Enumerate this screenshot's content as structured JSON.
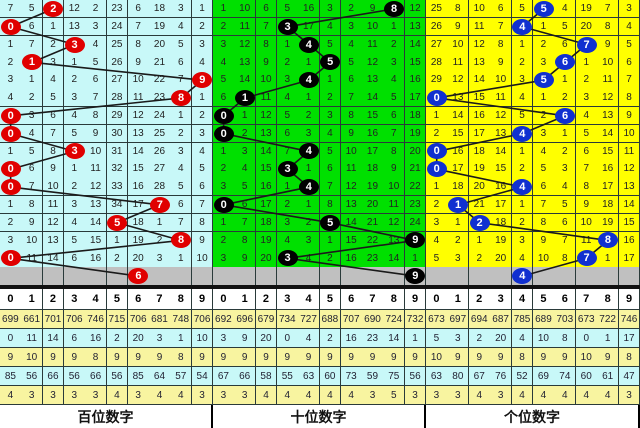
{
  "chart_data": {
    "type": "table",
    "digit_headers": [
      "0",
      "1",
      "2",
      "3",
      "4",
      "5",
      "6",
      "7",
      "8",
      "9"
    ],
    "panels": [
      {
        "title": "百位数字",
        "bg_color": "#c8f8f8",
        "ball_color": "#e00000",
        "draws": [
          2,
          0,
          3,
          1,
          9,
          8,
          0,
          0,
          3,
          0,
          0,
          7,
          5,
          8,
          0,
          6
        ],
        "rows": [
          [
            7,
            5,
            2,
            12,
            2,
            23,
            6,
            18,
            3,
            1
          ],
          [
            0,
            6,
            1,
            13,
            3,
            24,
            7,
            19,
            4,
            2
          ],
          [
            1,
            7,
            2,
            3,
            4,
            25,
            8,
            20,
            5,
            3
          ],
          [
            2,
            1,
            3,
            1,
            5,
            26,
            9,
            21,
            6,
            4
          ],
          [
            3,
            1,
            4,
            2,
            6,
            27,
            10,
            22,
            7,
            9
          ],
          [
            4,
            2,
            5,
            3,
            7,
            28,
            11,
            23,
            8,
            1
          ],
          [
            0,
            3,
            6,
            4,
            8,
            29,
            12,
            24,
            1,
            2
          ],
          [
            0,
            4,
            7,
            5,
            9,
            30,
            13,
            25,
            2,
            3
          ],
          [
            1,
            5,
            8,
            3,
            10,
            31,
            14,
            26,
            3,
            4
          ],
          [
            0,
            6,
            9,
            1,
            11,
            32,
            15,
            27,
            4,
            5
          ],
          [
            0,
            7,
            10,
            2,
            12,
            33,
            16,
            28,
            5,
            6
          ],
          [
            1,
            8,
            11,
            3,
            13,
            34,
            17,
            7,
            6,
            7
          ],
          [
            2,
            9,
            12,
            4,
            14,
            5,
            18,
            1,
            7,
            8
          ],
          [
            3,
            10,
            13,
            5,
            15,
            1,
            19,
            2,
            8,
            9
          ],
          [
            0,
            11,
            14,
            6,
            16,
            2,
            20,
            3,
            1,
            10
          ]
        ],
        "stats": [
          [
            699,
            661,
            701,
            706,
            746,
            715,
            706,
            681,
            748,
            706
          ],
          [
            0,
            11,
            14,
            6,
            16,
            2,
            20,
            3,
            1,
            10
          ],
          [
            9,
            10,
            9,
            9,
            8,
            9,
            9,
            9,
            8,
            9
          ],
          [
            85,
            56,
            66,
            56,
            66,
            56,
            85,
            64,
            57,
            54
          ],
          [
            4,
            3,
            3,
            3,
            3,
            4,
            3,
            4,
            4,
            3
          ]
        ]
      },
      {
        "title": "十位数字",
        "bg_color": "#00e000",
        "ball_color": "#000000",
        "draws": [
          8,
          3,
          4,
          5,
          4,
          1,
          0,
          0,
          4,
          3,
          4,
          0,
          5,
          9,
          3,
          9
        ],
        "rows": [
          [
            1,
            10,
            6,
            5,
            16,
            3,
            2,
            9,
            8,
            12
          ],
          [
            2,
            11,
            7,
            3,
            17,
            4,
            3,
            10,
            1,
            13
          ],
          [
            3,
            12,
            8,
            1,
            4,
            5,
            4,
            11,
            2,
            14
          ],
          [
            4,
            13,
            9,
            2,
            1,
            5,
            5,
            12,
            3,
            15
          ],
          [
            5,
            14,
            10,
            3,
            4,
            1,
            6,
            13,
            4,
            16
          ],
          [
            6,
            1,
            11,
            4,
            1,
            2,
            7,
            14,
            5,
            17
          ],
          [
            0,
            1,
            12,
            5,
            2,
            3,
            8,
            15,
            6,
            18
          ],
          [
            0,
            2,
            13,
            6,
            3,
            4,
            9,
            16,
            7,
            19
          ],
          [
            1,
            3,
            14,
            7,
            4,
            5,
            10,
            17,
            8,
            20
          ],
          [
            2,
            4,
            15,
            3,
            1,
            6,
            11,
            18,
            9,
            21
          ],
          [
            3,
            5,
            16,
            1,
            4,
            7,
            12,
            19,
            10,
            22
          ],
          [
            0,
            6,
            17,
            2,
            1,
            8,
            13,
            20,
            11,
            23
          ],
          [
            1,
            7,
            18,
            3,
            2,
            5,
            14,
            21,
            12,
            24
          ],
          [
            2,
            8,
            19,
            4,
            3,
            1,
            15,
            22,
            13,
            9
          ],
          [
            3,
            9,
            20,
            3,
            4,
            2,
            16,
            23,
            14,
            1
          ]
        ],
        "stats": [
          [
            692,
            696,
            679,
            734,
            727,
            688,
            707,
            690,
            724,
            732
          ],
          [
            3,
            9,
            20,
            0,
            4,
            2,
            16,
            23,
            14,
            1
          ],
          [
            9,
            9,
            9,
            9,
            9,
            9,
            9,
            9,
            9,
            9
          ],
          [
            67,
            66,
            58,
            55,
            63,
            60,
            73,
            59,
            75,
            56
          ],
          [
            3,
            3,
            4,
            4,
            4,
            4,
            4,
            3,
            5,
            3
          ]
        ]
      },
      {
        "title": "个位数字",
        "bg_color": "#ffff00",
        "ball_color": "#1030d0",
        "draws": [
          5,
          4,
          7,
          6,
          5,
          0,
          6,
          4,
          0,
          0,
          4,
          1,
          2,
          8,
          7,
          4
        ],
        "rows": [
          [
            25,
            8,
            10,
            6,
            5,
            5,
            4,
            19,
            7,
            3
          ],
          [
            26,
            9,
            11,
            7,
            4,
            1,
            5,
            20,
            8,
            4
          ],
          [
            27,
            10,
            12,
            8,
            1,
            2,
            6,
            7,
            9,
            5
          ],
          [
            28,
            11,
            13,
            9,
            2,
            3,
            6,
            1,
            10,
            6
          ],
          [
            29,
            12,
            14,
            10,
            3,
            5,
            1,
            2,
            11,
            7
          ],
          [
            0,
            13,
            15,
            11,
            4,
            1,
            2,
            3,
            12,
            8
          ],
          [
            1,
            14,
            16,
            12,
            5,
            2,
            6,
            4,
            13,
            9
          ],
          [
            2,
            15,
            17,
            13,
            4,
            3,
            1,
            5,
            14,
            10
          ],
          [
            0,
            16,
            18,
            14,
            1,
            4,
            2,
            6,
            15,
            11
          ],
          [
            0,
            17,
            19,
            15,
            2,
            5,
            3,
            7,
            16,
            12
          ],
          [
            1,
            18,
            20,
            16,
            4,
            6,
            4,
            8,
            17,
            13
          ],
          [
            2,
            1,
            21,
            17,
            1,
            7,
            5,
            9,
            18,
            14
          ],
          [
            3,
            1,
            2,
            18,
            2,
            8,
            6,
            10,
            19,
            15
          ],
          [
            4,
            2,
            1,
            19,
            3,
            9,
            7,
            11,
            8,
            16
          ],
          [
            5,
            3,
            2,
            20,
            4,
            10,
            8,
            7,
            1,
            17
          ]
        ],
        "stats": [
          [
            673,
            697,
            694,
            687,
            785,
            689,
            703,
            673,
            722,
            746
          ],
          [
            5,
            3,
            2,
            20,
            4,
            10,
            8,
            0,
            1,
            17
          ],
          [
            10,
            9,
            9,
            9,
            8,
            9,
            9,
            10,
            9,
            8
          ],
          [
            63,
            80,
            67,
            76,
            52,
            69,
            74,
            60,
            61,
            47
          ],
          [
            3,
            3,
            4,
            3,
            4,
            4,
            4,
            4,
            4,
            3
          ]
        ]
      }
    ],
    "stat_row_colors": [
      "#f8f4a0",
      "#c8f8f8",
      "#f8f4a0",
      "#c8f8f8",
      "#f8f4a0"
    ],
    "pending_row_color": "#c0c0c0"
  }
}
